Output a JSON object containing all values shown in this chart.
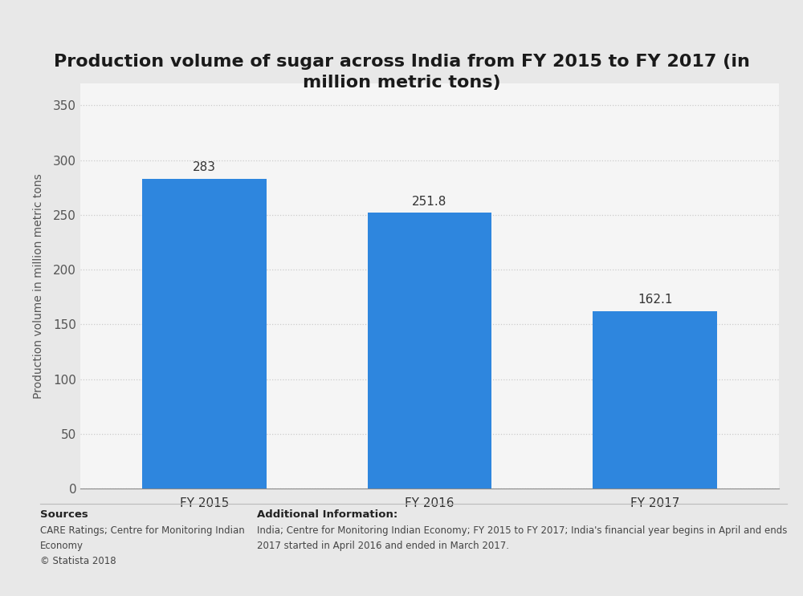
{
  "title": "Production volume of sugar across India from FY 2015 to FY 2017 (in\nmillion metric tons)",
  "categories": [
    "FY 2015",
    "FY 2016",
    "FY 2017"
  ],
  "values": [
    283.0,
    251.8,
    162.1
  ],
  "bar_color": "#2e86de",
  "ylabel": "Production volume in million metric tons",
  "ylim": [
    0,
    370
  ],
  "yticks": [
    0,
    50,
    100,
    150,
    200,
    250,
    300,
    350
  ],
  "title_fontsize": 16,
  "axis_label_fontsize": 10,
  "tick_fontsize": 11,
  "value_label_fontsize": 11,
  "background_color": "#e8e8e8",
  "plot_bg_color": "#f5f5f5",
  "grid_color": "#cccccc",
  "sources_title": "Sources",
  "sources_text": "CARE Ratings; Centre for Monitoring Indian\nEconomy\n© Statista 2018",
  "additional_title": "Additional Information:",
  "additional_text": "India; Centre for Monitoring Indian Economy; FY 2015 to FY 2017; India's financial year begins in April and ends\n2017 started in April 2016 and ended in March 2017."
}
